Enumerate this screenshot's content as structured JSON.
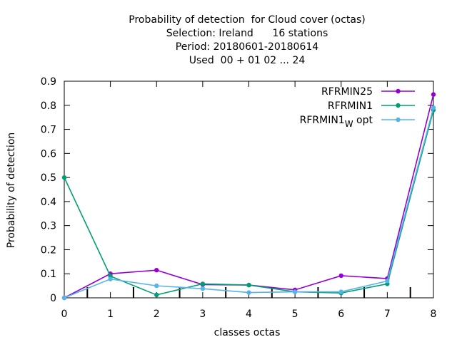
{
  "chart_data": {
    "type": "line",
    "title_lines": [
      "Probability of detection  for Cloud cover (octas)",
      "Selection: Ireland      16 stations",
      "Period: 20180601-20180614",
      "Used  00 + 01 02 ... 24"
    ],
    "xlabel": "classes octas",
    "ylabel": "Probability of detection",
    "x": [
      0,
      1,
      2,
      3,
      4,
      5,
      6,
      7,
      8
    ],
    "xlim": [
      0,
      8
    ],
    "ylim": [
      0,
      0.9
    ],
    "xticks": [
      0,
      1,
      2,
      3,
      4,
      5,
      6,
      7,
      8
    ],
    "yticks": [
      0,
      0.1,
      0.2,
      0.3,
      0.4,
      0.5,
      0.6,
      0.7,
      0.8,
      0.9
    ],
    "ytick_labels": [
      "0",
      "0.1",
      "0.2",
      "0.3",
      "0.4",
      "0.5",
      "0.6",
      "0.7",
      "0.8",
      "0.9"
    ],
    "grid": false,
    "legend_position": "top-right",
    "series": [
      {
        "name": "RFRMIN25",
        "color": "#9400d3",
        "values": [
          0.0,
          0.1,
          0.115,
          0.055,
          0.053,
          0.033,
          0.092,
          0.08,
          0.845
        ]
      },
      {
        "name": "RFRMIN1",
        "color": "#009e73",
        "values": [
          0.5,
          0.09,
          0.012,
          0.058,
          0.053,
          0.025,
          0.02,
          0.058,
          0.78
        ]
      },
      {
        "name": "RFRMIN1",
        "name_subscript": "W",
        "name_suffix": " opt",
        "color": "#56b4e9",
        "values": [
          0.0,
          0.078,
          0.05,
          0.038,
          0.022,
          0.025,
          0.025,
          0.07,
          0.79
        ]
      }
    ],
    "marker_bars_x": [
      0.5,
      1.5,
      2.5,
      3.5,
      4.5,
      5.5,
      6.5,
      7.5
    ]
  }
}
